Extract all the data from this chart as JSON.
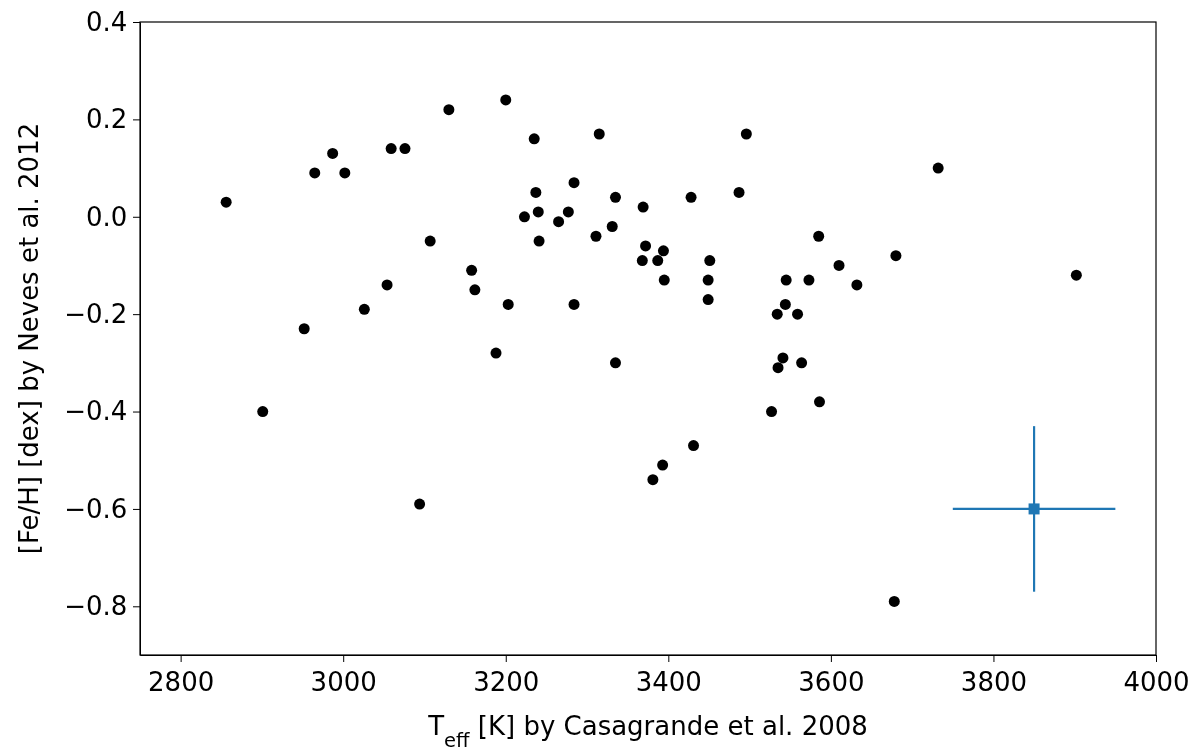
{
  "chart_data": {
    "type": "scatter",
    "xlabel": "T$_{eff}$ [K] by Casagrande et al. 2008",
    "ylabel": "[Fe/H] [dex] by Neves et al. 2012",
    "xlim": [
      2750,
      4000
    ],
    "xticks": [
      2800,
      3000,
      3200,
      3400,
      3600,
      3800,
      4000
    ],
    "ylim": [
      -0.9,
      0.4
    ],
    "yticks": [
      {
        "value": -0.8,
        "label": "−0.8"
      },
      {
        "value": -0.6,
        "label": "−0.6"
      },
      {
        "value": -0.4,
        "label": "−0.4"
      },
      {
        "value": -0.2,
        "label": "−0.2"
      },
      {
        "value": 0,
        "label": "0.0"
      },
      {
        "value": 0.2,
        "label": "0.2"
      },
      {
        "value": 0.4,
        "label": "0.4"
      }
    ],
    "grid": false,
    "series": [
      {
        "color": "#000000",
        "marker": "circle",
        "x": [
          2856,
          3130,
          3200,
          2965,
          2987,
          3002,
          3059,
          3076,
          3223,
          3107,
          3158,
          3162,
          3203,
          3054,
          3026,
          2952,
          3188,
          2901,
          3094,
          3235,
          3315,
          3284,
          3237,
          3240,
          3277,
          3265,
          3241,
          3311,
          3331,
          3335,
          3369,
          3372,
          3394,
          3368,
          3387,
          3395,
          3428,
          3487,
          3496,
          3451,
          3449,
          3449,
          3284,
          3335,
          3431,
          3393,
          3381,
          3585,
          3610,
          3632,
          3680,
          3545,
          3573,
          3544,
          3534,
          3559,
          3541,
          3535,
          3564,
          3586,
          3527,
          3678,
          3732,
          3902
        ],
        "values": [
          0.03,
          0.22,
          0.24,
          0.09,
          0.13,
          0.09,
          0.14,
          0.14,
          0.0,
          -0.05,
          -0.11,
          -0.15,
          -0.18,
          -0.14,
          -0.19,
          -0.23,
          -0.28,
          -0.4,
          -0.59,
          0.16,
          0.17,
          0.07,
          0.05,
          0.01,
          0.01,
          -0.01,
          -0.05,
          -0.04,
          -0.02,
          0.04,
          0.02,
          -0.06,
          -0.07,
          -0.09,
          -0.09,
          -0.13,
          0.04,
          0.05,
          0.17,
          -0.09,
          -0.13,
          -0.17,
          -0.18,
          -0.3,
          -0.47,
          -0.51,
          -0.54,
          -0.04,
          -0.1,
          -0.14,
          -0.08,
          -0.13,
          -0.13,
          -0.18,
          -0.2,
          -0.2,
          -0.29,
          -0.31,
          -0.3,
          -0.38,
          -0.4,
          -0.79,
          0.1,
          -0.12
        ]
      },
      {
        "color": "#1f77b4",
        "marker": "square",
        "x": [
          3850
        ],
        "values": [
          -0.6
        ],
        "errors": [
          0.17
        ],
        "xerrors": [
          100
        ]
      }
    ]
  }
}
